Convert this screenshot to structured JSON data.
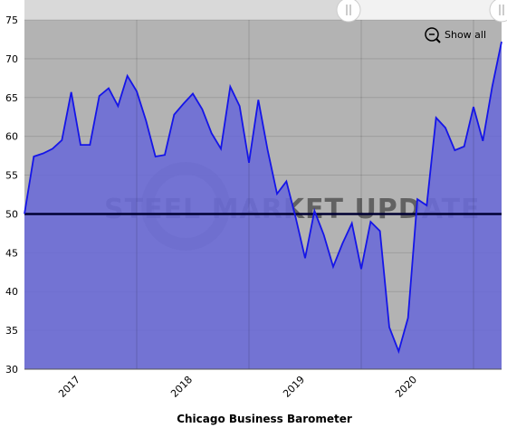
{
  "chart_data": {
    "type": "area",
    "x_label": "Chicago Business Barometer",
    "watermark": "STEEL MARKET UPDATE",
    "button": "Show all",
    "categories": [
      null,
      null,
      null,
      null,
      null,
      null,
      "2017",
      null,
      null,
      null,
      null,
      null,
      null,
      null,
      null,
      null,
      null,
      null,
      "2018",
      null,
      null,
      null,
      null,
      null,
      null,
      null,
      null,
      null,
      null,
      null,
      "2019",
      null,
      null,
      null,
      null,
      null,
      null,
      null,
      null,
      null,
      null,
      null,
      "2020",
      null,
      null,
      null,
      null,
      null,
      null,
      null,
      null,
      null
    ],
    "series": [
      {
        "color": "#1515e8",
        "fill": "#6b6bd6",
        "values": [
          50,
          57.4,
          57.8,
          58.4,
          59.5,
          65.7,
          58.9,
          58.9,
          65.2,
          66.2,
          63.9,
          67.8,
          65.8,
          62,
          57.4,
          57.6,
          62.8,
          64.2,
          65.5,
          63.5,
          60.4,
          58.4,
          66.4,
          63.9,
          56.6,
          64.7,
          58.2,
          52.6,
          54.2,
          49.5,
          44.3,
          50.4,
          47.3,
          43.2,
          46.2,
          48.8,
          42.9,
          49,
          47.8,
          35.4,
          32.3,
          36.6,
          51.9,
          51.1,
          62.4,
          61.1,
          58.2,
          58.7,
          63.8,
          59.4,
          66.4,
          72.2
        ]
      }
    ],
    "reference_line": 50,
    "ylim": [
      30,
      75
    ],
    "yticks": [
      30,
      35,
      40,
      45,
      50,
      55,
      60,
      65,
      70,
      75
    ],
    "grid": true
  }
}
